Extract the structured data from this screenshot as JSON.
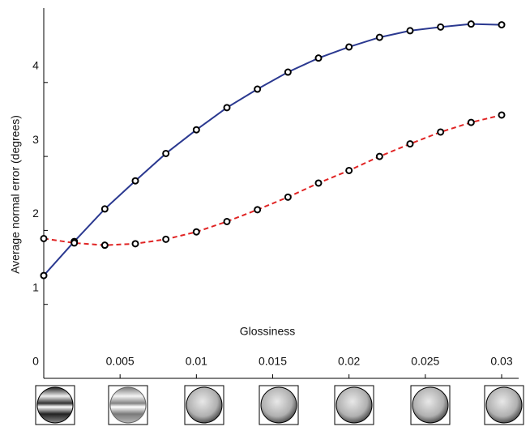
{
  "chart_data": {
    "type": "line",
    "x_label": "Glossiness",
    "y_label": "Average normal error (degrees)",
    "x": [
      0,
      0.002,
      0.004,
      0.006,
      0.008,
      0.01,
      0.012,
      0.014,
      0.016,
      0.018,
      0.02,
      0.022,
      0.024,
      0.026,
      0.028,
      0.03
    ],
    "series": [
      {
        "color": "#2b3990",
        "dashed": false,
        "values": [
          1.39,
          1.85,
          2.29,
          2.67,
          3.04,
          3.36,
          3.66,
          3.91,
          4.14,
          4.33,
          4.48,
          4.61,
          4.7,
          4.75,
          4.79,
          4.78
        ]
      },
      {
        "color": "#e02424",
        "dashed": true,
        "values": [
          1.89,
          1.83,
          1.8,
          1.82,
          1.88,
          1.98,
          2.12,
          2.28,
          2.45,
          2.64,
          2.81,
          3.0,
          3.17,
          3.33,
          3.46,
          3.56
        ]
      }
    ],
    "xlim": [
      0,
      0.03
    ],
    "xticks": [
      0.005,
      0.01,
      0.015,
      0.02,
      0.025,
      0.03
    ],
    "ylim": [
      0,
      5
    ],
    "yticks": [
      0,
      1,
      2,
      3,
      4
    ],
    "grid": false
  }
}
